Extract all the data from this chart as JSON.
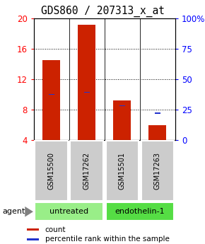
{
  "title": "GDS860 / 207313_x_at",
  "samples": [
    "GSM15500",
    "GSM17262",
    "GSM15501",
    "GSM17263"
  ],
  "bar_bottom": 4,
  "bar_tops": [
    14.5,
    19.2,
    9.2,
    6.0
  ],
  "percentile_values": [
    10.0,
    10.3,
    8.55,
    7.55
  ],
  "ylim": [
    4,
    20
  ],
  "yticks_left": [
    4,
    8,
    12,
    16,
    20
  ],
  "yticks_right": [
    0,
    25,
    50,
    75,
    100
  ],
  "bar_color": "#cc2200",
  "blue_color": "#2233cc",
  "groups": [
    {
      "label": "untreated",
      "span": [
        0,
        2
      ],
      "color": "#99ee88"
    },
    {
      "label": "endothelin-1",
      "span": [
        2,
        4
      ],
      "color": "#55dd44"
    }
  ],
  "sample_box_color": "#cccccc",
  "bar_width": 0.5,
  "title_fontsize": 10.5,
  "tick_fontsize": 8.5,
  "sample_fontsize": 7,
  "group_fontsize": 8,
  "legend_fontsize": 7.5,
  "grid_yticks": [
    8,
    12,
    16
  ]
}
